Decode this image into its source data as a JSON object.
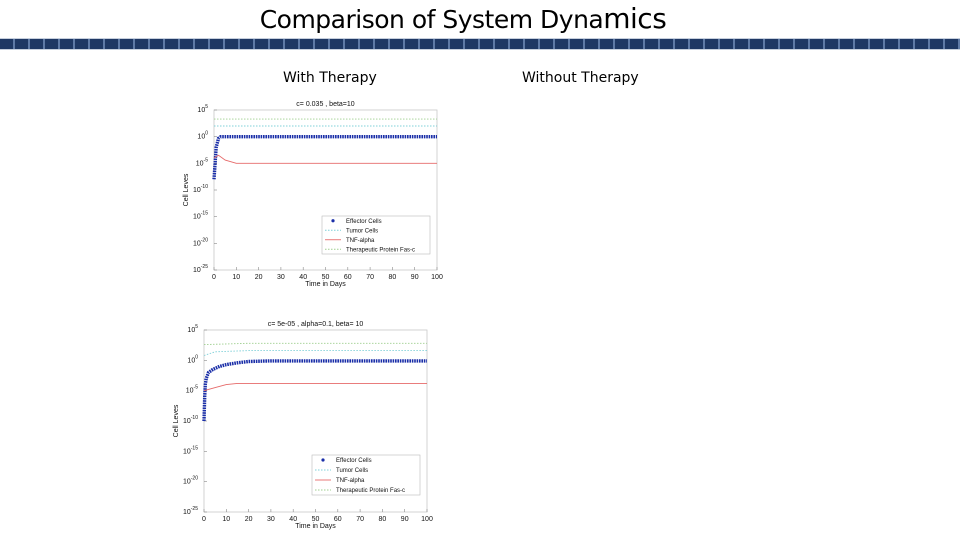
{
  "slide": {
    "title_main": "Comparison of System Dyna",
    "title_tail": "mics",
    "col_with": "With Therapy",
    "col_without": "Without Therapy"
  },
  "chart_data": [
    {
      "type": "line",
      "title": "c= 0.035 , beta=10",
      "xlabel": "Time in Days",
      "ylabel": "Cell Leves",
      "xlim": [
        0,
        100
      ],
      "xticks": [
        "0",
        "10",
        "20",
        "30",
        "40",
        "50",
        "60",
        "70",
        "80",
        "90",
        "100"
      ],
      "ylim_log10": [
        -25,
        5
      ],
      "yticks": [
        {
          "base": "10",
          "exp": "5",
          "value": 5
        },
        {
          "base": "10",
          "exp": "0",
          "value": 0
        },
        {
          "base": "10",
          "exp": "-5",
          "value": -5
        },
        {
          "base": "10",
          "exp": "-10",
          "value": -10
        },
        {
          "base": "10",
          "exp": "-15",
          "value": -15
        },
        {
          "base": "10",
          "exp": "-20",
          "value": -20
        }
      ],
      "ytick_bottom": {
        "base": "10",
        "exp": "-25",
        "value": -25
      },
      "grid": false,
      "legend_position": "bottom-right",
      "series": [
        {
          "name": "Effector Cells",
          "style": "marker",
          "color": "#1a2ea8",
          "x": [
            0,
            0.5,
            1,
            2,
            3,
            5,
            8,
            100
          ],
          "y_log10": [
            -8,
            -5,
            -2,
            -0.3,
            0,
            0,
            0,
            0
          ]
        },
        {
          "name": "Tumor Cells",
          "style": "dotted",
          "color": "#7fd0d8",
          "x": [
            0,
            100
          ],
          "y_log10": [
            2,
            2
          ]
        },
        {
          "name": "TNF-alpha",
          "style": "solid",
          "color": "#e66a6a",
          "x": [
            0,
            2,
            5,
            10,
            100
          ],
          "y_log10": [
            -4,
            -3.5,
            -4.4,
            -5,
            -5
          ]
        },
        {
          "name": "Therapeutic Protein Fas-c",
          "style": "dotted",
          "color": "#9fcf8f",
          "x": [
            0,
            100
          ],
          "y_log10": [
            3.3,
            3.3
          ]
        }
      ]
    },
    {
      "type": "line",
      "title": "c= 5e-05 , alpha=0.1,  beta= 10",
      "xlabel": "Time in Days",
      "ylabel": "Cell Leves",
      "xlim": [
        0,
        100
      ],
      "xticks": [
        "0",
        "10",
        "20",
        "30",
        "40",
        "50",
        "60",
        "70",
        "80",
        "90",
        "100"
      ],
      "ylim_log10": [
        -25,
        5
      ],
      "yticks": [
        {
          "base": "10",
          "exp": "5",
          "value": 5
        },
        {
          "base": "10",
          "exp": "0",
          "value": 0
        },
        {
          "base": "10",
          "exp": "-5",
          "value": -5
        },
        {
          "base": "10",
          "exp": "-10",
          "value": -10
        },
        {
          "base": "10",
          "exp": "-15",
          "value": -15
        },
        {
          "base": "10",
          "exp": "-20",
          "value": -20
        }
      ],
      "ytick_bottom": {
        "base": "10",
        "exp": "-25",
        "value": -25
      },
      "grid": false,
      "legend_position": "bottom-right",
      "series": [
        {
          "name": "Effector Cells",
          "style": "marker",
          "color": "#1a2ea8",
          "x": [
            0,
            0.3,
            0.6,
            1,
            2,
            4,
            7,
            10,
            15,
            20,
            30,
            100
          ],
          "y_log10": [
            -10,
            -6,
            -4,
            -3,
            -2,
            -1.5,
            -1,
            -0.7,
            -0.4,
            -0.2,
            -0.1,
            -0.1
          ]
        },
        {
          "name": "Tumor Cells",
          "style": "dotted",
          "color": "#7fd0d8",
          "x": [
            0,
            5,
            20,
            100
          ],
          "y_log10": [
            0.8,
            1.4,
            1.6,
            1.6
          ]
        },
        {
          "name": "TNF-alpha",
          "style": "solid",
          "color": "#e66a6a",
          "x": [
            0,
            5,
            10,
            15,
            100
          ],
          "y_log10": [
            -5,
            -4.5,
            -4,
            -3.8,
            -3.8
          ]
        },
        {
          "name": "Therapeutic Protein Fas-c",
          "style": "dotted",
          "color": "#9fcf8f",
          "x": [
            0,
            20,
            100
          ],
          "y_log10": [
            2.6,
            2.8,
            2.8
          ]
        }
      ]
    }
  ]
}
